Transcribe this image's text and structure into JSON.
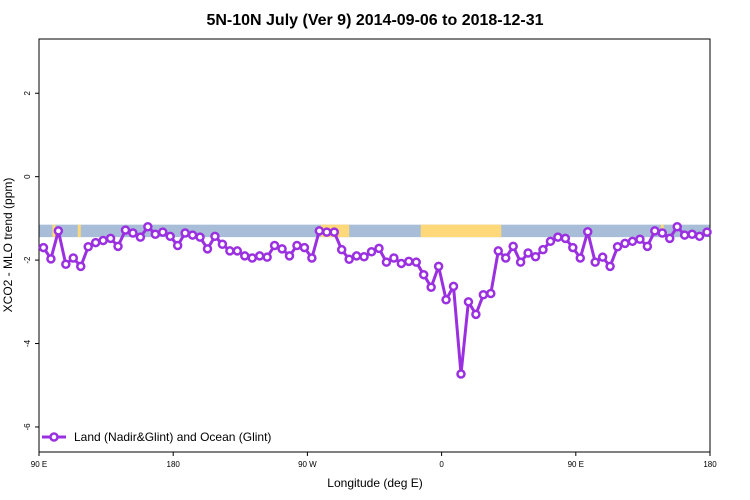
{
  "chart_data": {
    "type": "line",
    "title": "5N-10N July (Ver 9)   2014-09-06 to 2018-12-31",
    "xlabel": "Longitude (deg E)",
    "ylabel": "XCO2 - MLO trend (ppm)",
    "x_ticks": [
      {
        "label": "90 E",
        "value": 90
      },
      {
        "label": "180",
        "value": 180
      },
      {
        "label": "90 W",
        "value": 270
      },
      {
        "label": "0",
        "value": 360
      },
      {
        "label": "90 E",
        "value": 450
      },
      {
        "label": "180",
        "value": 540
      }
    ],
    "y_ticks": [
      2,
      0,
      -2,
      -4,
      -6
    ],
    "xlim": [
      90,
      540
    ],
    "ylim": [
      -6.6,
      3.3
    ],
    "grid": false,
    "legend_position": "bottom-left",
    "land_ocean_band": {
      "y_range": [
        -1.45,
        -1.15
      ],
      "ocean_color": "#A8BED8",
      "land_color": "#FFD87A",
      "land_segments": [
        [
          99,
          101
        ],
        [
          116,
          118
        ],
        [
          279,
          298
        ],
        [
          346,
          400
        ],
        [
          575,
          576
        ],
        [
          507,
          509
        ]
      ]
    },
    "series": [
      {
        "name": "Land (Nadir&Glint) and Ocean (Glint)",
        "color": "#9B30E0",
        "x": [
          93,
          98,
          103,
          108,
          113,
          118,
          123,
          128,
          133,
          138,
          143,
          148,
          153,
          158,
          163,
          168,
          173,
          178,
          183,
          188,
          193,
          198,
          203,
          208,
          213,
          218,
          223,
          228,
          233,
          238,
          243,
          248,
          253,
          258,
          263,
          268,
          273,
          278,
          283,
          288,
          293,
          298,
          303,
          308,
          313,
          318,
          323,
          328,
          333,
          338,
          343,
          348,
          353,
          358,
          363,
          368,
          373,
          378,
          383,
          388,
          393,
          398,
          403,
          408,
          413,
          418,
          423,
          428,
          433,
          438,
          443,
          448,
          453,
          458,
          463,
          468,
          473,
          478,
          483,
          488,
          493,
          498,
          503,
          508,
          513,
          518,
          523,
          528,
          533,
          538
        ],
        "y": [
          -1.7,
          -1.97,
          -1.3,
          -2.1,
          -1.95,
          -2.15,
          -1.68,
          -1.58,
          -1.53,
          -1.48,
          -1.67,
          -1.28,
          -1.35,
          -1.45,
          -1.2,
          -1.38,
          -1.33,
          -1.43,
          -1.65,
          -1.35,
          -1.4,
          -1.45,
          -1.73,
          -1.43,
          -1.62,
          -1.78,
          -1.78,
          -1.9,
          -1.95,
          -1.9,
          -1.93,
          -1.65,
          -1.73,
          -1.9,
          -1.65,
          -1.7,
          -1.95,
          -1.3,
          -1.33,
          -1.33,
          -1.75,
          -1.98,
          -1.9,
          -1.92,
          -1.8,
          -1.72,
          -2.05,
          -1.95,
          -2.08,
          -2.03,
          -2.05,
          -2.35,
          -2.65,
          -2.15,
          -2.95,
          -2.63,
          -4.73,
          -3.0,
          -3.3,
          -2.83,
          -2.8,
          -1.78,
          -1.95,
          -1.67,
          -2.05,
          -1.83,
          -1.92,
          -1.75,
          -1.55,
          -1.45,
          -1.48,
          -1.7,
          -1.95,
          -1.32,
          -2.05,
          -1.93,
          -2.15,
          -1.68,
          -1.6,
          -1.55,
          -1.5,
          -1.67,
          -1.3,
          -1.35,
          -1.48,
          -1.2,
          -1.4,
          -1.38,
          -1.43,
          -1.33
        ]
      }
    ]
  }
}
